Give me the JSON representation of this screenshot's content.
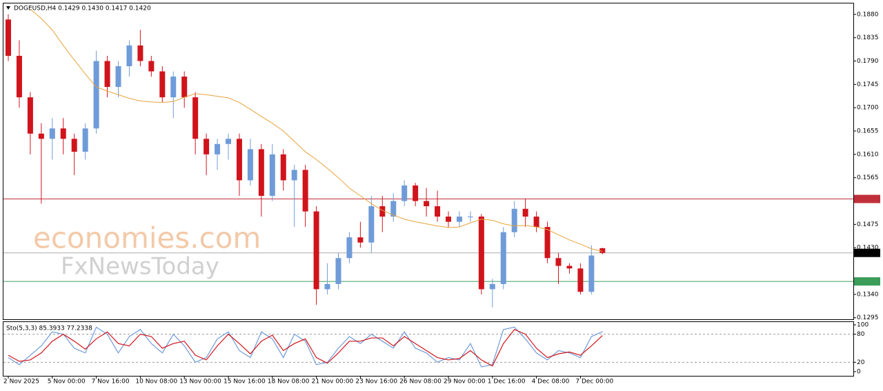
{
  "chart_data": [
    {
      "type": "candlestick",
      "title": "DOGEUSD,H4  0.1429 0.1430 0.1417 0.1420",
      "watermark": [
        "economies.com",
        "FxNewsToday"
      ],
      "categories": [
        "2 Nov 2025",
        null,
        null,
        null,
        "5 Nov 00:00",
        null,
        null,
        null,
        "7 Nov 16:00",
        null,
        null,
        null,
        "10 Nov 08:00",
        null,
        null,
        null,
        "13 Nov 00:00",
        null,
        null,
        null,
        "15 Nov 16:00",
        null,
        null,
        null,
        "18 Nov 08:00",
        null,
        null,
        null,
        "21 Nov 00:00",
        null,
        null,
        null,
        "23 Nov 16:00",
        null,
        null,
        null,
        "26 Nov 08:00",
        null,
        null,
        null,
        "29 Nov 00:00",
        null,
        null,
        null,
        "1 Dec 16:00",
        null,
        null,
        null,
        "4 Dec 08:00",
        null,
        null,
        null,
        "7 Dec 00:00",
        null,
        null
      ],
      "open": [
        0.187,
        0.18,
        0.172,
        0.165,
        0.164,
        0.166,
        0.164,
        0.1615,
        0.166,
        0.179,
        0.174,
        0.178,
        0.182,
        0.179,
        0.177,
        0.172,
        0.176,
        0.172,
        0.164,
        0.161,
        0.163,
        0.164,
        0.156,
        0.162,
        0.153,
        0.161,
        0.156,
        0.158,
        0.15,
        0.135,
        0.136,
        0.141,
        0.145,
        0.144,
        0.151,
        0.149,
        0.152,
        0.155,
        0.152,
        0.151,
        0.149,
        0.148,
        0.149,
        0.149,
        0.135,
        0.136,
        0.146,
        0.1505,
        0.149,
        0.147,
        0.141,
        0.1395,
        0.139,
        0.1345,
        0.1429
      ],
      "high": [
        0.188,
        0.183,
        0.173,
        0.167,
        0.168,
        0.168,
        0.165,
        0.167,
        0.181,
        0.18,
        0.179,
        0.183,
        0.185,
        0.18,
        0.178,
        0.177,
        0.177,
        0.173,
        0.165,
        0.164,
        0.165,
        0.165,
        0.164,
        0.163,
        0.163,
        0.162,
        0.159,
        0.159,
        0.151,
        0.14,
        0.142,
        0.146,
        0.148,
        0.153,
        0.153,
        0.1535,
        0.156,
        0.1555,
        0.1545,
        0.154,
        0.15,
        0.15,
        0.15,
        0.1495,
        0.137,
        0.147,
        0.152,
        0.1525,
        0.15,
        0.148,
        0.142,
        0.14,
        0.14,
        0.1435,
        0.143
      ],
      "low": [
        0.179,
        0.17,
        0.161,
        0.1515,
        0.16,
        0.161,
        0.157,
        0.16,
        0.165,
        0.172,
        0.172,
        0.176,
        0.178,
        0.176,
        0.171,
        0.168,
        0.17,
        0.161,
        0.157,
        0.158,
        0.16,
        0.153,
        0.155,
        0.149,
        0.152,
        0.154,
        0.147,
        0.147,
        0.132,
        0.134,
        0.135,
        0.14,
        0.143,
        0.142,
        0.146,
        0.148,
        0.151,
        0.151,
        0.149,
        0.148,
        0.147,
        0.147,
        0.148,
        0.134,
        0.1315,
        0.135,
        0.145,
        0.147,
        0.146,
        0.14,
        0.136,
        0.138,
        0.134,
        0.134,
        0.1417
      ],
      "close": [
        0.18,
        0.172,
        0.165,
        0.164,
        0.166,
        0.164,
        0.1615,
        0.166,
        0.179,
        0.174,
        0.178,
        0.182,
        0.179,
        0.177,
        0.172,
        0.176,
        0.172,
        0.164,
        0.161,
        0.163,
        0.164,
        0.156,
        0.162,
        0.153,
        0.161,
        0.156,
        0.158,
        0.15,
        0.135,
        0.136,
        0.141,
        0.145,
        0.144,
        0.151,
        0.149,
        0.152,
        0.155,
        0.152,
        0.151,
        0.149,
        0.148,
        0.149,
        0.149,
        0.135,
        0.136,
        0.146,
        0.1505,
        0.149,
        0.147,
        0.141,
        0.1395,
        0.139,
        0.1345,
        0.1415,
        0.142
      ],
      "up_color": "#6f9bd8",
      "down_color": "#d0141c",
      "ma": {
        "color": "#e8a33c",
        "values": [
          null,
          null,
          0.189,
          0.1872,
          0.185,
          0.182,
          0.1792,
          0.1765,
          0.174,
          0.1732,
          0.1725,
          0.1718,
          0.1713,
          0.1711,
          0.171,
          0.1712,
          0.172,
          0.1727,
          0.1725,
          0.1722,
          0.1719,
          0.171,
          0.1697,
          0.1683,
          0.167,
          0.1655,
          0.1635,
          0.1615,
          0.16,
          0.1583,
          0.1565,
          0.1545,
          0.153,
          0.1515,
          0.1502,
          0.1493,
          0.1485,
          0.148,
          0.1476,
          0.1472,
          0.1469,
          0.147,
          0.1478,
          0.1485,
          0.1483,
          0.1476,
          0.1472,
          0.1473,
          0.147,
          0.1465,
          0.1455,
          0.1445,
          0.1437,
          0.1428,
          0.1423
        ]
      },
      "hlines": [
        {
          "value": 0.1524,
          "color": "#c0303a"
        },
        {
          "value": 0.142,
          "label": "0.1420",
          "color": "#000000"
        },
        {
          "value": 0.1365,
          "color": "#3a9d5a"
        }
      ],
      "ylim": [
        0.1292,
        0.1901
      ],
      "yticks": [
        {
          "value": 0.188,
          "label": "0.1880"
        },
        0.1835,
        {
          "value": 0.179,
          "label": "0.1790"
        },
        0.1745,
        {
          "value": 0.17,
          "label": "0.1700"
        },
        0.1655,
        {
          "value": 0.161,
          "label": "0.1610"
        },
        0.1565,
        0.1475,
        {
          "value": 0.143,
          "label": "0.1430"
        },
        {
          "value": 0.134,
          "label": "0.1340"
        },
        0.1295
      ]
    },
    {
      "type": "line",
      "title": "Sto(5,3,3) 85.3933 77.2338",
      "series": [
        {
          "color": "#6f9bd8",
          "values": [
            30,
            15,
            35,
            55,
            85,
            80,
            50,
            40,
            95,
            80,
            40,
            75,
            90,
            60,
            40,
            80,
            55,
            20,
            30,
            70,
            85,
            45,
            30,
            85,
            70,
            30,
            80,
            65,
            15,
            20,
            50,
            75,
            60,
            80,
            65,
            50,
            85,
            50,
            40,
            20,
            30,
            25,
            60,
            10,
            15,
            90,
            95,
            70,
            40,
            25,
            45,
            40,
            30,
            75,
            85.3933
          ]
        },
        {
          "color": "#d0141c",
          "values": [
            35,
            22,
            25,
            40,
            65,
            80,
            65,
            48,
            70,
            85,
            60,
            55,
            80,
            75,
            50,
            60,
            65,
            35,
            25,
            55,
            80,
            60,
            38,
            65,
            78,
            45,
            60,
            70,
            30,
            18,
            40,
            65,
            65,
            72,
            72,
            55,
            75,
            60,
            45,
            30,
            25,
            28,
            45,
            25,
            12,
            60,
            90,
            80,
            50,
            30,
            38,
            42,
            35,
            55,
            77.2338
          ]
        }
      ],
      "levels": [
        20,
        80
      ],
      "ylim": [
        -9,
        106
      ],
      "yticks": [
        100,
        80,
        20,
        0
      ]
    }
  ]
}
